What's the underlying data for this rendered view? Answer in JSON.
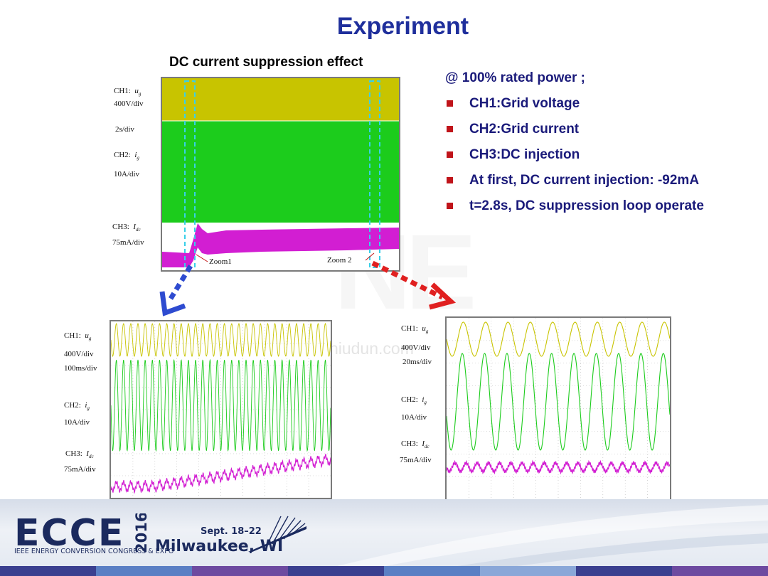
{
  "title": "Experiment",
  "subtitle": "DC current suppression effect",
  "bullets": {
    "intro": "@ 100% rated power ;",
    "items": [
      "CH1:Grid voltage",
      "CH2:Grid current",
      "CH3:DC injection",
      "At first, DC current injection: -92mA",
      "t=2.8s, DC suppression loop operate"
    ]
  },
  "main_scope": {
    "ch1_label": "CH1:",
    "ch1_symbol": "u",
    "ch1_sub": "g",
    "ch1_scale": "400V/div",
    "timebase": "2s/div",
    "ch2_label": "CH2:",
    "ch2_symbol": "i",
    "ch2_sub": "g",
    "ch2_scale": "10A/div",
    "ch3_label": "CH3:",
    "ch3_symbol": "I",
    "ch3_sub": "dc",
    "ch3_scale": "75mA/div",
    "zoom1": "Zoom1",
    "zoom2": "Zoom 2"
  },
  "zoom1_scope": {
    "ch1_label": "CH1:",
    "ch1_symbol": "u",
    "ch1_sub": "g",
    "ch1_scale": "400V/div",
    "timebase": "100ms/div",
    "ch2_label": "CH2:",
    "ch2_symbol": "i",
    "ch2_sub": "g",
    "ch2_scale": "10A/div",
    "ch3_label": "CH3:",
    "ch3_symbol": "I",
    "ch3_sub": "dc",
    "ch3_scale": "75mA/div"
  },
  "zoom2_scope": {
    "ch1_label": "CH1:",
    "ch1_symbol": "u",
    "ch1_sub": "g",
    "ch1_scale": "400V/div",
    "timebase": "20ms/div",
    "ch2_label": "CH2:",
    "ch2_symbol": "i",
    "ch2_sub": "g",
    "ch2_scale": "10A/div",
    "ch3_label": "CH3:",
    "ch3_symbol": "I",
    "ch3_sub": "dc",
    "ch3_scale": "75mA/div"
  },
  "watermark": "www.niudun.com",
  "watermark_logo": "NE",
  "footer": {
    "logo": "ECCE",
    "year": "2016",
    "org": "IEEE ENERGY CONVERSION CONGRESS & EXPO",
    "dates": "Sept. 18–22",
    "city": "Milwaukee, WI"
  },
  "colors": {
    "title": "#1f2f9c",
    "bullet_text": "#1a1a7a",
    "bullet_marker": "#c0141a",
    "ch1": "#c8c400",
    "ch2": "#1ccc1c",
    "ch3": "#d21ed2",
    "zoom1_arrow": "#2e4bd0",
    "zoom2_arrow": "#e02020",
    "zoom_box": "#39d0e8"
  }
}
